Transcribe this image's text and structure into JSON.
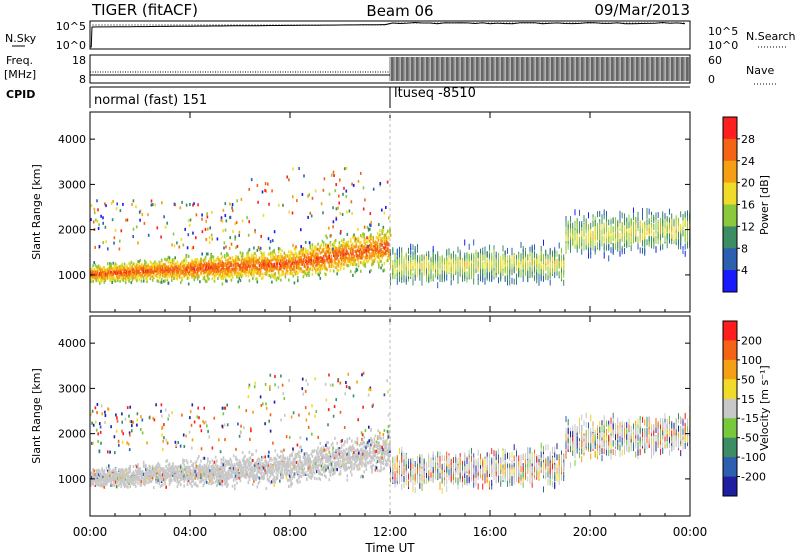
{
  "header": {
    "radar": "TIGER (fitACF)",
    "beam": "Beam 06",
    "date": "09/Mar/2013"
  },
  "status_panel": {
    "nsky_label": "N.Sky",
    "nsearch_label": "N.Search",
    "nsky_ticks": [
      "10^5",
      "10^0"
    ],
    "nsearch_ticks": [
      "10^5",
      "10^0"
    ],
    "freq_label": "Freq.",
    "freq_unit": "[MHz]",
    "freq_ticks": [
      "18",
      "8"
    ],
    "nave_label": "Nave",
    "nave_ticks": [
      "60",
      "0"
    ],
    "cpid_label": "CPID",
    "cpid_segments": [
      {
        "start_hour": 0,
        "label": "normal (fast) 151"
      },
      {
        "start_hour": 12,
        "label": "ltuseq -8510"
      }
    ]
  },
  "chart_data": [
    {
      "type": "heatmap",
      "name": "power-panel",
      "ylabel": "Slant Range [km]",
      "yticks": [
        1000,
        2000,
        3000,
        4000
      ],
      "ylim": [
        180,
        4600
      ],
      "xlim": [
        0,
        24
      ],
      "colorbar": {
        "label": "Power [dB]",
        "tick_labels": [
          "4",
          "8",
          "12",
          "16",
          "20",
          "24",
          "28"
        ],
        "colors": [
          "#1a1aff",
          "#2c5fb0",
          "#3c8c64",
          "#8cc83c",
          "#f0dc28",
          "#f5a014",
          "#f56414",
          "#ff1e1e"
        ]
      }
    },
    {
      "type": "heatmap",
      "name": "velocity-panel",
      "ylabel": "Slant Range [km]",
      "yticks": [
        1000,
        2000,
        3000,
        4000
      ],
      "ylim": [
        180,
        4600
      ],
      "xlim": [
        0,
        24
      ],
      "xticks": [
        "00:00",
        "04:00",
        "08:00",
        "12:00",
        "16:00",
        "20:00",
        "00:00"
      ],
      "xlabel": "Time UT",
      "colorbar": {
        "label": "Velocity [m s⁻¹]",
        "tick_labels": [
          "200",
          "100",
          "50",
          "15",
          "-15",
          "-50",
          "-100",
          "-200"
        ],
        "colors": [
          "#1e1ea0",
          "#2c5fb0",
          "#3c8c64",
          "#78c83c",
          "#c8c8c8",
          "#f0dc28",
          "#f5a014",
          "#f56414",
          "#ff1e1e"
        ]
      }
    }
  ]
}
